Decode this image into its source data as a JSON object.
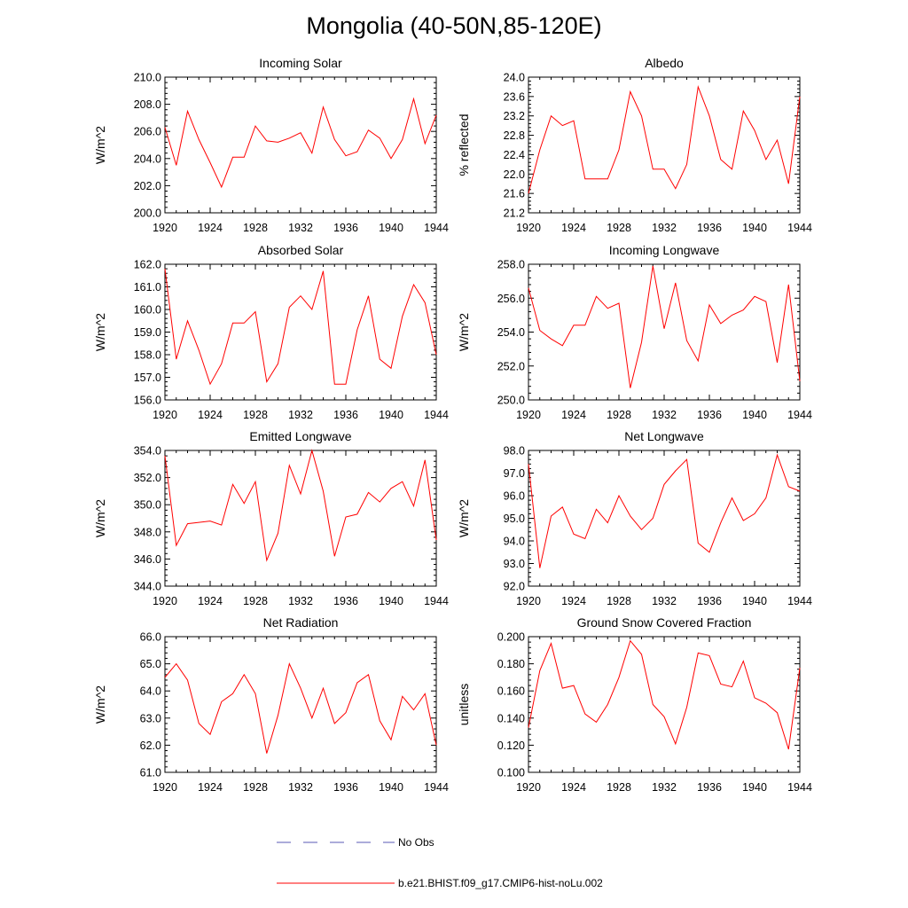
{
  "title": "Mongolia (40-50N,85-120E)",
  "legend": {
    "placement": "bottom",
    "items": [
      {
        "label": "No Obs",
        "color": "#5a5ab4",
        "style": "dashed"
      },
      {
        "label": "b.e21.BHIST.f09_g17.CMIP6-hist-noLu.002",
        "color": "#ff0000",
        "style": "solid"
      }
    ]
  },
  "chart_data": [
    {
      "type": "line",
      "title": "Incoming Solar",
      "ylabel": "W/m^2",
      "xlim": [
        1920,
        1944
      ],
      "ylim": [
        200,
        210
      ],
      "xticks": [
        "1920",
        "1924",
        "1928",
        "1932",
        "1936",
        "1940",
        "1944"
      ],
      "yticks": [
        "200.0",
        "202.0",
        "204.0",
        "206.0",
        "208.0",
        "210.0"
      ],
      "color": "#ff0000",
      "series": [
        {
          "x": [
            1920,
            1921,
            1922,
            1923,
            1924,
            1925,
            1926,
            1927,
            1928,
            1929,
            1930,
            1931,
            1932,
            1933,
            1934,
            1935,
            1936,
            1937,
            1938,
            1939,
            1940,
            1941,
            1942,
            1943,
            1944
          ],
          "values": [
            206.3,
            203.5,
            207.5,
            205.4,
            203.7,
            201.9,
            204.1,
            204.1,
            206.4,
            205.3,
            205.2,
            205.5,
            205.9,
            204.4,
            207.8,
            205.4,
            204.2,
            204.5,
            206.1,
            205.5,
            204.0,
            205.4,
            208.4,
            205.1,
            207.2
          ]
        }
      ]
    },
    {
      "type": "line",
      "title": "Albedo",
      "ylabel": "% reflected",
      "xlim": [
        1920,
        1944
      ],
      "ylim": [
        21.2,
        24.0
      ],
      "xticks": [
        "1920",
        "1924",
        "1928",
        "1932",
        "1936",
        "1940",
        "1944"
      ],
      "yticks": [
        "21.2",
        "21.6",
        "22.0",
        "22.4",
        "22.8",
        "23.2",
        "23.6",
        "24.0"
      ],
      "color": "#ff0000",
      "series": [
        {
          "x": [
            1920,
            1921,
            1922,
            1923,
            1924,
            1925,
            1926,
            1927,
            1928,
            1929,
            1930,
            1931,
            1932,
            1933,
            1934,
            1935,
            1936,
            1937,
            1938,
            1939,
            1940,
            1941,
            1942,
            1943,
            1944
          ],
          "values": [
            21.6,
            22.5,
            23.2,
            23.0,
            23.1,
            21.9,
            21.9,
            21.9,
            22.5,
            23.7,
            23.2,
            22.1,
            22.1,
            21.7,
            22.2,
            23.8,
            23.2,
            22.3,
            22.1,
            23.3,
            22.9,
            22.3,
            22.7,
            21.8,
            23.6
          ]
        }
      ]
    },
    {
      "type": "line",
      "title": "Absorbed Solar",
      "ylabel": "W/m^2",
      "xlim": [
        1920,
        1944
      ],
      "ylim": [
        156,
        162
      ],
      "xticks": [
        "1920",
        "1924",
        "1928",
        "1932",
        "1936",
        "1940",
        "1944"
      ],
      "yticks": [
        "156.0",
        "157.0",
        "158.0",
        "159.0",
        "160.0",
        "161.0",
        "162.0"
      ],
      "color": "#ff0000",
      "series": [
        {
          "x": [
            1920,
            1921,
            1922,
            1923,
            1924,
            1925,
            1926,
            1927,
            1928,
            1929,
            1930,
            1931,
            1932,
            1933,
            1934,
            1935,
            1936,
            1937,
            1938,
            1939,
            1940,
            1941,
            1942,
            1943,
            1944
          ],
          "values": [
            161.8,
            157.8,
            159.5,
            158.2,
            156.7,
            157.6,
            159.4,
            159.4,
            159.9,
            156.8,
            157.6,
            160.1,
            160.6,
            160.0,
            161.7,
            156.7,
            156.7,
            159.1,
            160.6,
            157.8,
            157.4,
            159.7,
            161.1,
            160.3,
            158.0
          ]
        }
      ]
    },
    {
      "type": "line",
      "title": "Incoming Longwave",
      "ylabel": "W/m^2",
      "xlim": [
        1920,
        1944
      ],
      "ylim": [
        250,
        258
      ],
      "xticks": [
        "1920",
        "1924",
        "1928",
        "1932",
        "1936",
        "1940",
        "1944"
      ],
      "yticks": [
        "250.0",
        "252.0",
        "254.0",
        "256.0",
        "258.0"
      ],
      "color": "#ff0000",
      "series": [
        {
          "x": [
            1920,
            1921,
            1922,
            1923,
            1924,
            1925,
            1926,
            1927,
            1928,
            1929,
            1930,
            1931,
            1932,
            1933,
            1934,
            1935,
            1936,
            1937,
            1938,
            1939,
            1940,
            1941,
            1942,
            1943,
            1944
          ],
          "values": [
            256.6,
            254.1,
            253.6,
            253.2,
            254.4,
            254.4,
            256.1,
            255.4,
            255.7,
            250.7,
            253.4,
            257.9,
            254.2,
            256.9,
            253.5,
            252.3,
            255.6,
            254.5,
            255.0,
            255.3,
            256.1,
            255.8,
            252.2,
            256.8,
            251.1
          ]
        }
      ]
    },
    {
      "type": "line",
      "title": "Emitted Longwave",
      "ylabel": "W/m^2",
      "xlim": [
        1920,
        1944
      ],
      "ylim": [
        344,
        354
      ],
      "xticks": [
        "1920",
        "1924",
        "1928",
        "1932",
        "1936",
        "1940",
        "1944"
      ],
      "yticks": [
        "344.0",
        "346.0",
        "348.0",
        "350.0",
        "352.0",
        "354.0"
      ],
      "color": "#ff0000",
      "series": [
        {
          "x": [
            1920,
            1921,
            1922,
            1923,
            1924,
            1925,
            1926,
            1927,
            1928,
            1929,
            1930,
            1931,
            1932,
            1933,
            1934,
            1935,
            1936,
            1937,
            1938,
            1939,
            1940,
            1941,
            1942,
            1943,
            1944
          ],
          "values": [
            353.6,
            347.0,
            348.6,
            348.7,
            348.8,
            348.5,
            351.5,
            350.1,
            351.7,
            345.9,
            347.9,
            352.9,
            350.8,
            354.0,
            351.0,
            346.2,
            349.1,
            349.3,
            350.9,
            350.2,
            351.2,
            351.7,
            349.9,
            353.3,
            347.4
          ]
        }
      ]
    },
    {
      "type": "line",
      "title": "Net Longwave",
      "ylabel": "W/m^2",
      "xlim": [
        1920,
        1944
      ],
      "ylim": [
        92,
        98
      ],
      "xticks": [
        "1920",
        "1924",
        "1928",
        "1932",
        "1936",
        "1940",
        "1944"
      ],
      "yticks": [
        "92.0",
        "93.0",
        "94.0",
        "95.0",
        "96.0",
        "97.0",
        "98.0"
      ],
      "color": "#ff0000",
      "series": [
        {
          "x": [
            1920,
            1921,
            1922,
            1923,
            1924,
            1925,
            1926,
            1927,
            1928,
            1929,
            1930,
            1931,
            1932,
            1933,
            1934,
            1935,
            1936,
            1937,
            1938,
            1939,
            1940,
            1941,
            1942,
            1943,
            1944
          ],
          "values": [
            97.4,
            92.8,
            95.1,
            95.5,
            94.3,
            94.1,
            95.4,
            94.8,
            96.0,
            95.1,
            94.5,
            95.0,
            96.5,
            97.1,
            97.6,
            93.9,
            93.5,
            94.8,
            95.9,
            94.9,
            95.2,
            95.9,
            97.8,
            96.4,
            96.2
          ]
        }
      ]
    },
    {
      "type": "line",
      "title": "Net Radiation",
      "ylabel": "W/m^2",
      "xlim": [
        1920,
        1944
      ],
      "ylim": [
        61,
        66
      ],
      "xticks": [
        "1920",
        "1924",
        "1928",
        "1932",
        "1936",
        "1940",
        "1944"
      ],
      "yticks": [
        "61.0",
        "62.0",
        "63.0",
        "64.0",
        "65.0",
        "66.0"
      ],
      "color": "#ff0000",
      "series": [
        {
          "x": [
            1920,
            1921,
            1922,
            1923,
            1924,
            1925,
            1926,
            1927,
            1928,
            1929,
            1930,
            1931,
            1932,
            1933,
            1934,
            1935,
            1936,
            1937,
            1938,
            1939,
            1940,
            1941,
            1942,
            1943,
            1944
          ],
          "values": [
            64.5,
            65.0,
            64.4,
            62.8,
            62.4,
            63.6,
            63.9,
            64.6,
            63.9,
            61.7,
            63.1,
            65.0,
            64.1,
            63.0,
            64.1,
            62.8,
            63.2,
            64.3,
            64.6,
            62.9,
            62.2,
            63.8,
            63.3,
            63.9,
            62.0
          ]
        }
      ]
    },
    {
      "type": "line",
      "title": "Ground Snow Covered Fraction",
      "ylabel": "unitless",
      "xlim": [
        1920,
        1944
      ],
      "ylim": [
        0.1,
        0.2
      ],
      "xticks": [
        "1920",
        "1924",
        "1928",
        "1932",
        "1936",
        "1940",
        "1944"
      ],
      "yticks": [
        "0.100",
        "0.120",
        "0.140",
        "0.160",
        "0.180",
        "0.200"
      ],
      "color": "#ff0000",
      "series": [
        {
          "x": [
            1920,
            1921,
            1922,
            1923,
            1924,
            1925,
            1926,
            1927,
            1928,
            1929,
            1930,
            1931,
            1932,
            1933,
            1934,
            1935,
            1936,
            1937,
            1938,
            1939,
            1940,
            1941,
            1942,
            1943,
            1944
          ],
          "values": [
            0.133,
            0.175,
            0.195,
            0.162,
            0.164,
            0.143,
            0.137,
            0.15,
            0.17,
            0.197,
            0.187,
            0.15,
            0.141,
            0.121,
            0.148,
            0.188,
            0.186,
            0.165,
            0.163,
            0.182,
            0.155,
            0.151,
            0.144,
            0.117,
            0.177
          ]
        }
      ]
    }
  ]
}
